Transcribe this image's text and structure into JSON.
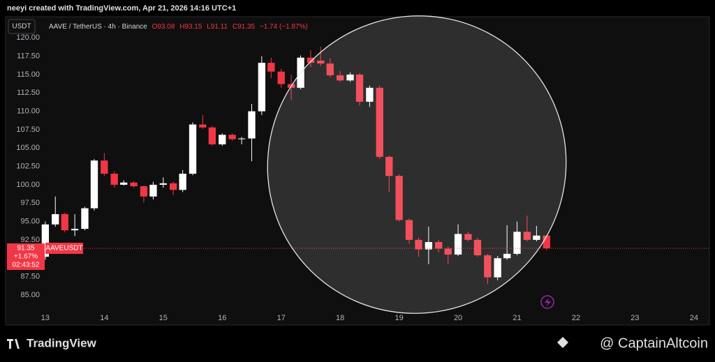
{
  "header": {
    "credit": "neeyi created with TradingView.com, Apr 21, 2026 14:16 UTC+1"
  },
  "toolbar": {
    "currency": "USDT"
  },
  "legend": {
    "symbol": "AAVE / TetherUS · 4h · Binance",
    "open": "O93.08",
    "high": "H93.15",
    "low": "L91.11",
    "close": "C91.35",
    "change": "−1.74 (−1.87%)"
  },
  "price_tag": {
    "symbol": "AAVEUSDT",
    "price": "91.35",
    "change": "+1.67%",
    "countdown": "02:43:52"
  },
  "footer": {
    "brand": "TradingView",
    "watermark": "@ CaptainAltcoin"
  },
  "chart_data": {
    "type": "candlestick",
    "up_color": "#ffffff",
    "down_color": "#f23645",
    "x": [
      13.0,
      13.17,
      13.33,
      13.5,
      13.67,
      13.83,
      14.0,
      14.17,
      14.33,
      14.5,
      14.67,
      14.83,
      15.0,
      15.17,
      15.33,
      15.5,
      15.67,
      15.83,
      16.0,
      16.17,
      16.33,
      16.5,
      16.67,
      16.83,
      17.0,
      17.17,
      17.33,
      17.5,
      17.67,
      17.83,
      18.0,
      18.17,
      18.33,
      18.5,
      18.67,
      18.83,
      19.0,
      19.17,
      19.33,
      19.5,
      19.67,
      19.83,
      20.0,
      20.17,
      20.33,
      20.5,
      20.67,
      20.83,
      21.0,
      21.17,
      21.33,
      21.5
    ],
    "open": [
      90.2,
      94.6,
      96.0,
      93.8,
      94.0,
      96.8,
      103.3,
      101.5,
      100.0,
      100.3,
      99.8,
      98.4,
      100.0,
      100.2,
      99.3,
      101.5,
      108.2,
      107.8,
      105.5,
      106.8,
      106.2,
      106.3,
      110.0,
      116.6,
      115.4,
      113.7,
      113.2,
      117.3,
      116.9,
      116.5,
      114.9,
      114.2,
      115.0,
      111.3,
      113.2,
      103.8,
      101.2,
      95.2,
      92.5,
      91.2,
      92.2,
      91.3,
      90.5,
      93.3,
      92.5,
      90.4,
      87.4,
      90.0,
      90.6,
      93.6,
      92.5,
      93.08
    ],
    "high": [
      95.0,
      98.4,
      96.2,
      96.0,
      97.0,
      103.5,
      104.3,
      101.8,
      100.6,
      100.5,
      99.9,
      100.4,
      101.0,
      100.4,
      102.0,
      108.5,
      109.5,
      108.0,
      107.0,
      107.0,
      106.5,
      111.0,
      117.5,
      117.3,
      115.8,
      115.0,
      117.6,
      118.3,
      118.8,
      117.2,
      115.5,
      115.3,
      115.2,
      113.5,
      113.5,
      104.0,
      101.4,
      95.4,
      92.8,
      94.3,
      92.5,
      91.6,
      94.6,
      93.6,
      92.8,
      90.6,
      90.3,
      94.5,
      95.0,
      95.8,
      94.4,
      93.15
    ],
    "low": [
      89.8,
      94.3,
      93.5,
      93.0,
      93.8,
      96.5,
      101.2,
      99.6,
      99.9,
      99.6,
      97.6,
      98.0,
      99.6,
      98.6,
      99.0,
      101.3,
      107.6,
      105.3,
      105.3,
      106.0,
      105.5,
      103.2,
      109.5,
      114.5,
      113.2,
      111.5,
      113.0,
      116.0,
      116.2,
      114.6,
      114.0,
      114.0,
      110.8,
      110.6,
      103.5,
      99.0,
      95.0,
      92.0,
      90.2,
      89.2,
      90.8,
      89.2,
      90.3,
      92.3,
      90.2,
      86.5,
      87.0,
      89.8,
      90.4,
      92.3,
      92.3,
      91.11
    ],
    "close": [
      94.6,
      96.0,
      93.8,
      94.0,
      96.8,
      103.3,
      101.5,
      100.0,
      100.3,
      99.8,
      98.4,
      100.0,
      100.2,
      99.3,
      101.5,
      108.2,
      107.8,
      105.5,
      106.8,
      106.2,
      106.3,
      110.0,
      116.6,
      115.4,
      113.7,
      113.2,
      117.3,
      116.6,
      116.5,
      114.9,
      114.2,
      115.0,
      111.3,
      113.2,
      103.8,
      101.2,
      95.2,
      92.5,
      91.2,
      92.2,
      91.3,
      90.5,
      93.3,
      92.5,
      90.4,
      87.4,
      90.0,
      90.6,
      93.6,
      92.5,
      93.08,
      91.35
    ],
    "xlim": [
      12.35,
      24.25
    ],
    "xticks": [
      13,
      14,
      15,
      16,
      17,
      18,
      19,
      20,
      21,
      22,
      23,
      24
    ],
    "ylim": [
      82.9,
      122.3
    ],
    "yticks": [
      {
        "value": 85,
        "label": "85.00"
      },
      {
        "value": 87.5,
        "label": "87.50"
      },
      {
        "value": 90,
        "label": "90.00"
      },
      {
        "value": 92.5,
        "label": "92.50"
      },
      {
        "value": 95,
        "label": "95.00"
      },
      {
        "value": 97.5,
        "label": "97.50"
      },
      {
        "value": 100,
        "label": "100.00"
      },
      {
        "value": 102.5,
        "label": "102.50"
      },
      {
        "value": 105,
        "label": "105.00"
      },
      {
        "value": 107.5,
        "label": "107.50"
      },
      {
        "value": 110,
        "label": "110.00"
      },
      {
        "value": 112.5,
        "label": "112.50"
      },
      {
        "value": 115,
        "label": "115.00"
      },
      {
        "value": 117.5,
        "label": "117.50"
      },
      {
        "value": 120,
        "label": "120.00"
      }
    ]
  }
}
